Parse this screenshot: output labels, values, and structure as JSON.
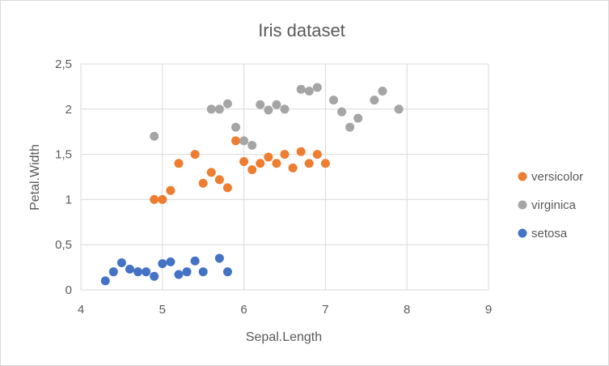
{
  "chart_data": {
    "type": "scatter",
    "title": "Iris dataset",
    "xlabel": "Sepal.Length",
    "ylabel": "Petal.Width",
    "xlim": [
      4,
      9
    ],
    "ylim": [
      0,
      2.5
    ],
    "x_ticks": [
      "4",
      "5",
      "6",
      "7",
      "8",
      "9"
    ],
    "y_ticks": [
      "0",
      "0,5",
      "1",
      "1,5",
      "2",
      "2,5"
    ],
    "grid": true,
    "legend_position": "right",
    "series": [
      {
        "name": "versicolor",
        "color": "#ED7D31",
        "points": [
          [
            4.9,
            1.0
          ],
          [
            5.0,
            1.0
          ],
          [
            5.1,
            1.1
          ],
          [
            5.2,
            1.4
          ],
          [
            5.4,
            1.5
          ],
          [
            5.5,
            1.18
          ],
          [
            5.6,
            1.3
          ],
          [
            5.7,
            1.22
          ],
          [
            5.8,
            1.13
          ],
          [
            5.9,
            1.65
          ],
          [
            6.0,
            1.42
          ],
          [
            6.1,
            1.33
          ],
          [
            6.2,
            1.4
          ],
          [
            6.3,
            1.47
          ],
          [
            6.4,
            1.4
          ],
          [
            6.5,
            1.5
          ],
          [
            6.6,
            1.35
          ],
          [
            6.7,
            1.53
          ],
          [
            6.8,
            1.4
          ],
          [
            6.9,
            1.5
          ],
          [
            7.0,
            1.4
          ]
        ]
      },
      {
        "name": "virginica",
        "color": "#A5A5A5",
        "points": [
          [
            4.9,
            1.7
          ],
          [
            5.6,
            2.0
          ],
          [
            5.7,
            2.0
          ],
          [
            5.8,
            2.06
          ],
          [
            5.9,
            1.8
          ],
          [
            6.0,
            1.65
          ],
          [
            6.1,
            1.6
          ],
          [
            6.2,
            2.05
          ],
          [
            6.3,
            1.99
          ],
          [
            6.4,
            2.05
          ],
          [
            6.5,
            2.0
          ],
          [
            6.7,
            2.22
          ],
          [
            6.8,
            2.2
          ],
          [
            6.9,
            2.24
          ],
          [
            7.1,
            2.1
          ],
          [
            7.2,
            1.97
          ],
          [
            7.3,
            1.8
          ],
          [
            7.4,
            1.9
          ],
          [
            7.6,
            2.1
          ],
          [
            7.7,
            2.2
          ],
          [
            7.9,
            2.0
          ]
        ]
      },
      {
        "name": "setosa",
        "color": "#4472C4",
        "points": [
          [
            4.3,
            0.1
          ],
          [
            4.4,
            0.2
          ],
          [
            4.5,
            0.3
          ],
          [
            4.6,
            0.23
          ],
          [
            4.7,
            0.2
          ],
          [
            4.8,
            0.2
          ],
          [
            4.9,
            0.15
          ],
          [
            5.0,
            0.29
          ],
          [
            5.1,
            0.31
          ],
          [
            5.2,
            0.17
          ],
          [
            5.3,
            0.2
          ],
          [
            5.4,
            0.32
          ],
          [
            5.5,
            0.2
          ],
          [
            5.7,
            0.35
          ],
          [
            5.8,
            0.2
          ]
        ]
      }
    ]
  }
}
